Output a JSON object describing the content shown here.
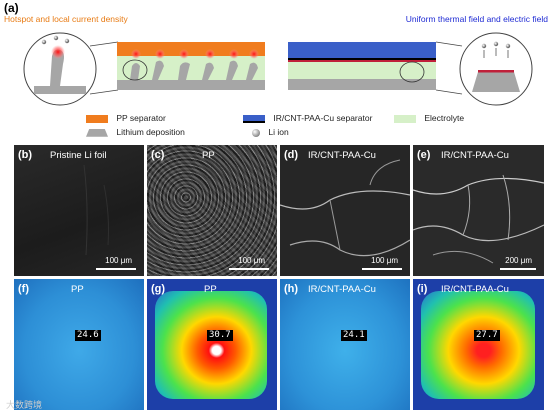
{
  "panel_a": {
    "label": "(a)",
    "left_title": "Hotspot and local current density",
    "right_title": "Uniform thermal field and electric field"
  },
  "legend": {
    "pp": "PP separator",
    "ir": "IR/CNT-PAA-Cu separator",
    "electrolyte": "Electrolyte",
    "lithium": "Lithium deposition",
    "liion": "Li ion"
  },
  "sem_panels": [
    {
      "label": "(b)",
      "title": "Pristine Li foil",
      "scale": "100 μm"
    },
    {
      "label": "(c)",
      "title": "PP",
      "scale": "100 μm"
    },
    {
      "label": "(d)",
      "title": "IR/CNT-PAA-Cu",
      "scale": "100 μm"
    },
    {
      "label": "(e)",
      "title": "IR/CNT-PAA-Cu",
      "scale": "200 μm"
    }
  ],
  "thermal_panels": [
    {
      "label": "(f)",
      "title": "PP",
      "temp": "24.6"
    },
    {
      "label": "(g)",
      "title": "PP",
      "temp": "30.7"
    },
    {
      "label": "(h)",
      "title": "IR/CNT-PAA-Cu",
      "temp": "24.1"
    },
    {
      "label": "(i)",
      "title": "IR/CNT-PAA-Cu",
      "temp": "27.7"
    }
  ],
  "watermark": "大数跨境",
  "colors": {
    "pp_orange": "#f07c1e",
    "ir_blue": "#3a5fc8",
    "electrolyte_green": "#d6f0c8",
    "lithium_gray": "#a6a6a6"
  }
}
